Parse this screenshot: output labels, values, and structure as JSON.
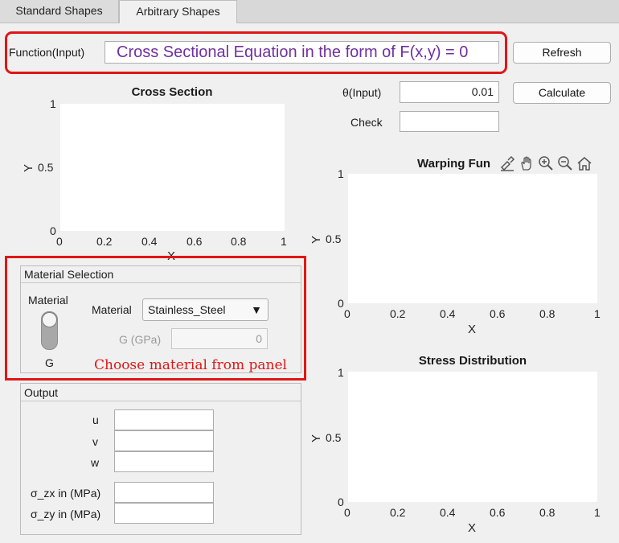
{
  "tabs": [
    {
      "label": "Standard Shapes",
      "active": false
    },
    {
      "label": "Arbitrary Shapes",
      "active": true
    }
  ],
  "function_input": {
    "label": "Function(Input)",
    "value": "Cross Sectional Equation in the form of F(x,y) = 0"
  },
  "buttons": {
    "refresh": "Refresh",
    "calculate": "Calculate"
  },
  "theta": {
    "label": "θ(Input)",
    "value": "0.01"
  },
  "check": {
    "label": "Check",
    "value": ""
  },
  "cross_section": {
    "title": "Cross Section",
    "xlabel": "X",
    "ylabel": "Y",
    "xticks": [
      "0",
      "0.2",
      "0.4",
      "0.6",
      "0.8",
      "1"
    ],
    "yticks": [
      "1",
      "0.5",
      "0"
    ]
  },
  "warping": {
    "title": "Warping Fun",
    "xlabel": "X",
    "ylabel": "Y",
    "xticks": [
      "0",
      "0.2",
      "0.4",
      "0.6",
      "0.8",
      "1"
    ],
    "yticks": [
      "1",
      "0.5",
      "0"
    ]
  },
  "stress": {
    "title": "Stress Distribution",
    "xlabel": "X",
    "ylabel": "Y",
    "xticks": [
      "0",
      "0.2",
      "0.4",
      "0.6",
      "0.8",
      "1"
    ],
    "yticks": [
      "1",
      "0.5",
      "0"
    ]
  },
  "axes_toolbar": [
    "brush-icon",
    "pan-hand-icon",
    "zoom-in-icon",
    "zoom-out-icon",
    "home-icon"
  ],
  "material": {
    "panel_title": "Material Selection",
    "switch_top_label": "Material",
    "switch_bottom_label": "G",
    "switch_position": "Material",
    "dropdown_label": "Material",
    "dropdown_value": "Stainless_Steel",
    "g_label": "G (GPa)",
    "g_value": "0",
    "annotation": "Choose material from panel"
  },
  "output": {
    "panel_title": "Output",
    "fields": [
      {
        "label": "u",
        "value": ""
      },
      {
        "label": "v",
        "value": ""
      },
      {
        "label": "w",
        "value": ""
      },
      {
        "label": "σ_zx in (MPa)",
        "value": ""
      },
      {
        "label": "σ_zy in (MPa)",
        "value": ""
      }
    ]
  },
  "colors": {
    "highlight": "#e01616",
    "function_text": "#7030a0"
  }
}
